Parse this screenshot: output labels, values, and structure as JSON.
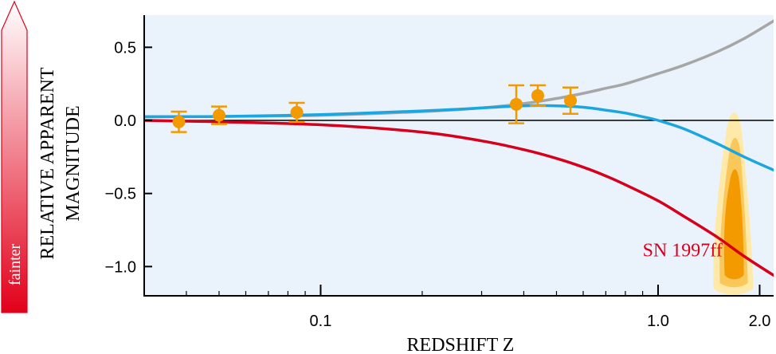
{
  "chart_data": {
    "type": "line",
    "title": "",
    "xlabel": "REDSHIFT Z",
    "ylabel": [
      "RELATIVE APPARENT",
      "MAGNITUDE"
    ],
    "x_scale": "log",
    "xlim": [
      0.03,
      2.2
    ],
    "ylim": [
      -1.2,
      0.72
    ],
    "x_ticks": [
      {
        "value": 0.1,
        "label": "0.1"
      },
      {
        "value": 1.0,
        "label": "1.0"
      },
      {
        "value": 2.0,
        "label": "2.0"
      }
    ],
    "y_ticks": [
      {
        "value": 0.5,
        "label": "0.5"
      },
      {
        "value": 0.0,
        "label": "0.0"
      },
      {
        "value": -0.5,
        "label": "−0.5"
      },
      {
        "value": -1.0,
        "label": "−1.0"
      }
    ],
    "reference_line_y": 0.0,
    "series": [
      {
        "color": "#a6a6a6",
        "x": [
          0.03,
          0.05,
          0.1,
          0.2,
          0.3,
          0.4,
          0.5,
          0.6,
          0.7,
          0.8,
          1.0,
          1.2,
          1.5,
          1.8,
          2.2
        ],
        "y": [
          0.025,
          0.027,
          0.035,
          0.06,
          0.085,
          0.115,
          0.15,
          0.185,
          0.22,
          0.25,
          0.32,
          0.38,
          0.47,
          0.56,
          0.68
        ]
      },
      {
        "color": "#1aa6e0",
        "x": [
          0.03,
          0.05,
          0.1,
          0.2,
          0.3,
          0.4,
          0.5,
          0.6,
          0.7,
          0.8,
          0.9,
          1.0,
          1.2,
          1.5,
          1.8,
          2.2
        ],
        "y": [
          0.025,
          0.027,
          0.04,
          0.065,
          0.085,
          0.1,
          0.1,
          0.09,
          0.07,
          0.05,
          0.025,
          0.0,
          -0.06,
          -0.16,
          -0.25,
          -0.34
        ]
      },
      {
        "color": "#d6001c",
        "x": [
          0.03,
          0.05,
          0.1,
          0.2,
          0.3,
          0.4,
          0.5,
          0.6,
          0.7,
          0.8,
          1.0,
          1.2,
          1.5,
          1.8,
          2.2
        ],
        "y": [
          0.0,
          -0.01,
          -0.03,
          -0.08,
          -0.14,
          -0.2,
          -0.26,
          -0.32,
          -0.38,
          -0.44,
          -0.55,
          -0.66,
          -0.8,
          -0.93,
          -1.06
        ]
      }
    ],
    "points": [
      {
        "x": 0.038,
        "y": -0.01,
        "yerr": 0.07
      },
      {
        "x": 0.05,
        "y": 0.035,
        "yerr": 0.06
      },
      {
        "x": 0.085,
        "y": 0.055,
        "yerr": 0.065
      },
      {
        "x": 0.38,
        "y": 0.11,
        "yerr": 0.13
      },
      {
        "x": 0.44,
        "y": 0.17,
        "yerr": 0.07
      },
      {
        "x": 0.55,
        "y": 0.135,
        "yerr": 0.09
      }
    ],
    "highlight": {
      "name": "SN 1997ff",
      "x": 1.7,
      "contour_colors": [
        "#ffe9a8",
        "#f9c75a",
        "#f39a00"
      ]
    },
    "annotations": [
      {
        "text": "SN 1997ff",
        "x": 0.9,
        "y": -0.93
      }
    ],
    "side_arrow": {
      "label": "fainter",
      "gradient": [
        "#e2001a",
        "#ffffff"
      ]
    },
    "colors": {
      "plot_background": "#eaf2fb",
      "point": "#f39a00"
    }
  }
}
